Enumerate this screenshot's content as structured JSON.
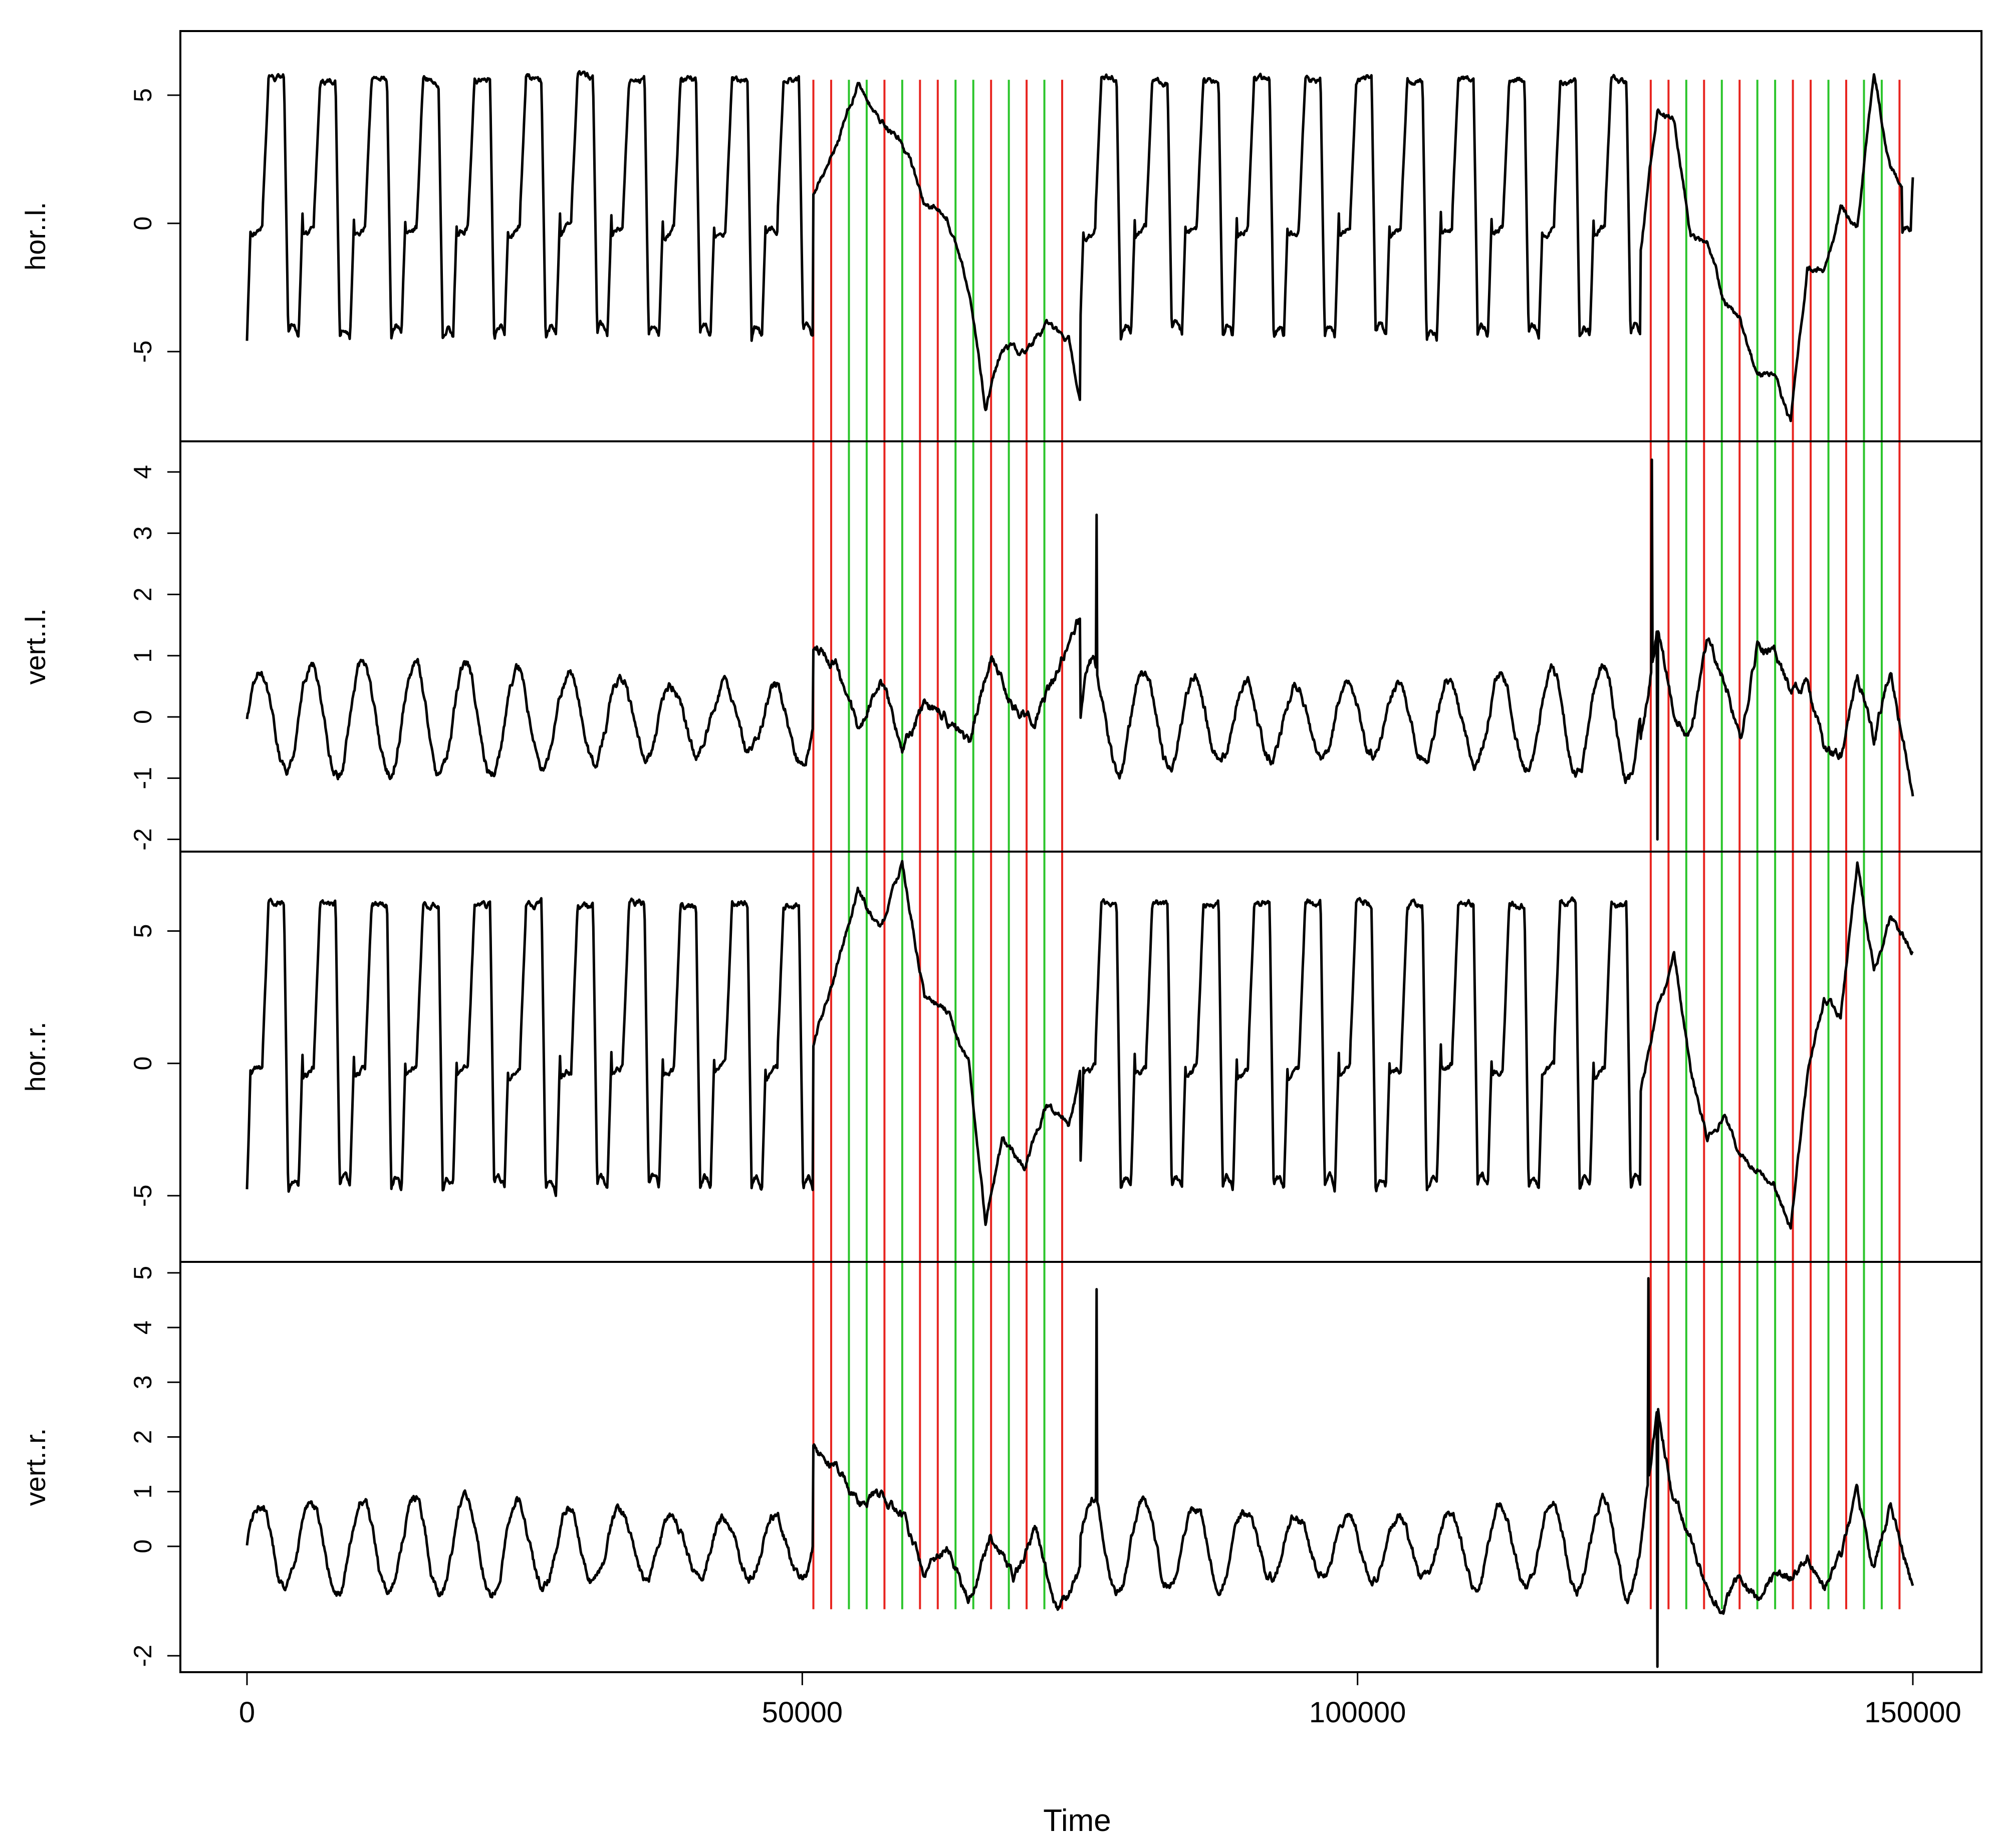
{
  "chart_data": {
    "type": "line",
    "title": "",
    "xlabel": "Time",
    "xlim": [
      0,
      150000
    ],
    "x_ticks": [
      0,
      50000,
      100000,
      150000
    ],
    "x_tick_labels": [
      "0",
      "50000",
      "100000",
      "150000"
    ],
    "grid": false,
    "legend": "none",
    "line_color": "#000000",
    "marker_colors": {
      "red": "#e8241f",
      "green": "#2bc52b"
    },
    "panels": [
      {
        "ylabel": "hor..l.",
        "ylim": [
          -8.5,
          7.5
        ],
        "y_ticks": [
          -5,
          0,
          5
        ],
        "y_tick_labels": [
          "-5",
          "0",
          "5"
        ],
        "cycles": 11,
        "amplitude_low": -4.5,
        "amplitude_high": 5.8,
        "spikes": [],
        "series": [
          {
            "x": [
              51000,
              53000,
              55000,
              57000,
              59000,
              61000,
              63000,
              65000,
              66500,
              68000,
              70000,
              72000,
              74000,
              75000
            ],
            "values": [
              1.2,
              3.0,
              5.5,
              4.0,
              3.2,
              0.8,
              0.3,
              -2.5,
              -7.2,
              -4.8,
              -5.0,
              -4.0,
              -4.5,
              -7.0
            ]
          },
          {
            "x": [
              125500,
              127000,
              128500,
              130000,
              131500,
              133000,
              134500,
              136000,
              137500,
              139000,
              140500,
              142000,
              143500,
              145000,
              146500,
              148000,
              149000
            ],
            "values": [
              -1.0,
              4.5,
              4.0,
              -0.5,
              -0.8,
              -3.0,
              -3.8,
              -6.0,
              -5.8,
              -7.8,
              -1.8,
              -1.8,
              0.5,
              -0.2,
              6.0,
              2.0,
              1.5
            ]
          }
        ]
      },
      {
        "ylabel": "vert..l.",
        "ylim": [
          -2.2,
          4.5
        ],
        "y_ticks": [
          -2,
          -1,
          0,
          1,
          2,
          3,
          4
        ],
        "y_tick_labels": [
          "-2",
          "-1",
          "0",
          "1",
          "2",
          "3",
          "4"
        ],
        "cycles": 11,
        "amplitude_low": -1.0,
        "amplitude_high": 0.9,
        "spikes": [
          [
            76500,
            3.3
          ],
          [
            126500,
            4.2
          ],
          [
            127000,
            -2.0
          ]
        ],
        "series": [
          {
            "x": [
              51000,
              53000,
              55000,
              57000,
              59000,
              61000,
              63000,
              65000,
              67000,
              69000,
              71000,
              73000,
              75000
            ],
            "values": [
              1.2,
              0.8,
              -0.2,
              0.6,
              -0.5,
              0.2,
              0.0,
              -0.4,
              1.0,
              0.2,
              0.0,
              0.8,
              1.6
            ]
          },
          {
            "x": [
              125500,
              127000,
              128500,
              130000,
              131500,
              133000,
              134500,
              136000,
              137500,
              139000,
              140500,
              142000,
              143500,
              145000,
              146500,
              148000,
              150000
            ],
            "values": [
              -0.5,
              1.5,
              0.0,
              -0.3,
              1.2,
              0.6,
              -0.3,
              1.2,
              1.0,
              0.4,
              0.6,
              -0.5,
              -0.6,
              0.7,
              -0.4,
              0.8,
              -1.3
            ]
          }
        ]
      },
      {
        "ylabel": "hor..r.",
        "ylim": [
          -7.5,
          8.0
        ],
        "y_ticks": [
          -5,
          0,
          5
        ],
        "y_tick_labels": [
          "-5",
          "0",
          "5"
        ],
        "cycles": 11,
        "amplitude_low": -4.8,
        "amplitude_high": 6.2,
        "spikes": [],
        "series": [
          {
            "x": [
              51000,
              53000,
              55000,
              57000,
              59000,
              61000,
              63000,
              65000,
              66500,
              68000,
              70000,
              72000,
              74000,
              75000
            ],
            "values": [
              0.8,
              3.5,
              6.5,
              5.0,
              7.5,
              2.5,
              2.0,
              0.0,
              -6.0,
              -3.0,
              -4.0,
              -1.5,
              -2.5,
              -0.5
            ]
          },
          {
            "x": [
              125500,
              127000,
              128500,
              130000,
              131500,
              133000,
              134500,
              136000,
              137500,
              139000,
              140500,
              142000,
              143500,
              145000,
              146500,
              148000,
              150000
            ],
            "values": [
              -1.0,
              2.0,
              4.0,
              -0.3,
              -2.8,
              -2.0,
              -3.5,
              -4.0,
              -4.5,
              -6.3,
              -0.5,
              2.5,
              1.8,
              7.5,
              3.5,
              5.5,
              4.2
            ]
          }
        ]
      },
      {
        "ylabel": "vert..r.",
        "ylim": [
          -2.3,
          5.2
        ],
        "y_ticks": [
          -2,
          0,
          1,
          2,
          3,
          4,
          5
        ],
        "y_tick_labels": [
          "-2",
          "0",
          "1",
          "2",
          "3",
          "4",
          "5"
        ],
        "cycles": 11,
        "amplitude_low": -0.9,
        "amplitude_high": 0.9,
        "spikes": [
          [
            76500,
            4.7
          ],
          [
            126200,
            4.9
          ],
          [
            127000,
            -2.2
          ]
        ],
        "series": [
          {
            "x": [
              51000,
              53000,
              55000,
              57000,
              59000,
              61000,
              63000,
              65000,
              67000,
              69000,
              71000,
              73000,
              75000
            ],
            "values": [
              1.8,
              1.5,
              0.8,
              1.0,
              0.6,
              -0.5,
              0.0,
              -1.0,
              0.2,
              -0.6,
              0.3,
              -1.2,
              -0.5
            ]
          },
          {
            "x": [
              125500,
              127000,
              128500,
              130000,
              131500,
              133000,
              134500,
              136000,
              137500,
              139000,
              140500,
              142000,
              143500,
              145000,
              146500,
              148000,
              150000
            ],
            "values": [
              0.0,
              2.5,
              0.8,
              0.2,
              -0.8,
              -1.1,
              -0.5,
              -1.0,
              -0.5,
              -0.6,
              -0.2,
              -0.8,
              -0.2,
              1.0,
              -0.5,
              0.8,
              -0.8
            ]
          }
        ]
      }
    ],
    "vlines": [
      {
        "x": 51000,
        "color": "red"
      },
      {
        "x": 52600,
        "color": "red"
      },
      {
        "x": 54200,
        "color": "green"
      },
      {
        "x": 55800,
        "color": "green"
      },
      {
        "x": 57400,
        "color": "red"
      },
      {
        "x": 59000,
        "color": "green"
      },
      {
        "x": 60600,
        "color": "red"
      },
      {
        "x": 62200,
        "color": "red"
      },
      {
        "x": 63800,
        "color": "green"
      },
      {
        "x": 65400,
        "color": "green"
      },
      {
        "x": 67000,
        "color": "red"
      },
      {
        "x": 68600,
        "color": "green"
      },
      {
        "x": 70200,
        "color": "red"
      },
      {
        "x": 71800,
        "color": "green"
      },
      {
        "x": 73400,
        "color": "red"
      },
      {
        "x": 126400,
        "color": "red"
      },
      {
        "x": 128000,
        "color": "red"
      },
      {
        "x": 129600,
        "color": "green"
      },
      {
        "x": 131200,
        "color": "red"
      },
      {
        "x": 132800,
        "color": "green"
      },
      {
        "x": 134400,
        "color": "red"
      },
      {
        "x": 136000,
        "color": "green"
      },
      {
        "x": 137600,
        "color": "green"
      },
      {
        "x": 139200,
        "color": "red"
      },
      {
        "x": 140800,
        "color": "red"
      },
      {
        "x": 142400,
        "color": "green"
      },
      {
        "x": 144000,
        "color": "red"
      },
      {
        "x": 145600,
        "color": "green"
      },
      {
        "x": 147200,
        "color": "green"
      },
      {
        "x": 148800,
        "color": "red"
      }
    ]
  }
}
